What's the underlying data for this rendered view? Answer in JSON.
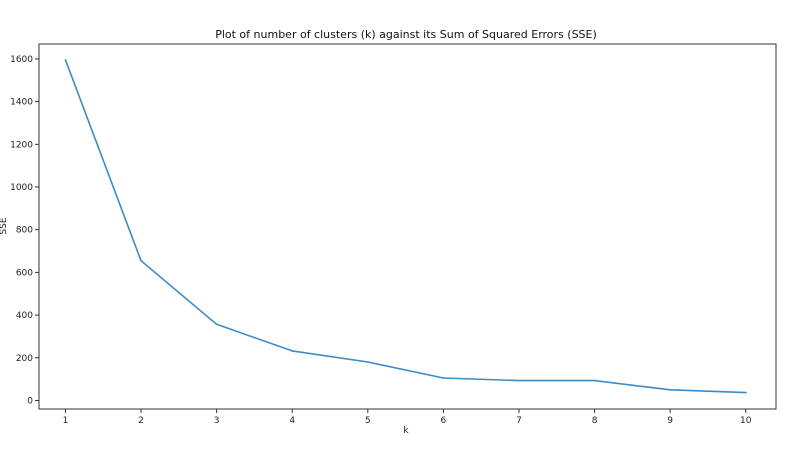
{
  "chart_data": {
    "type": "line",
    "title": "Plot of number of clusters (k) against its Sum of Squared Errors (SSE)",
    "xlabel": "k",
    "ylabel": "SSE",
    "x": [
      1,
      2,
      3,
      4,
      5,
      6,
      7,
      8,
      9,
      10
    ],
    "xticks": [
      "1",
      "2",
      "3",
      "4",
      "5",
      "6",
      "7",
      "8",
      "9",
      "10"
    ],
    "xlim": [
      0.65,
      10.4
    ],
    "yticks": [
      "0",
      "200",
      "400",
      "600",
      "800",
      "1000",
      "1200",
      "1400",
      "1600"
    ],
    "ytick_values": [
      0,
      200,
      400,
      600,
      800,
      1000,
      1200,
      1400,
      1600
    ],
    "ylim": [
      -40,
      1670
    ],
    "grid": false,
    "series": [
      {
        "values": [
          1595,
          655,
          357,
          232,
          180,
          105,
          93,
          93,
          50,
          37
        ],
        "color": "#3b8bc4"
      }
    ]
  }
}
